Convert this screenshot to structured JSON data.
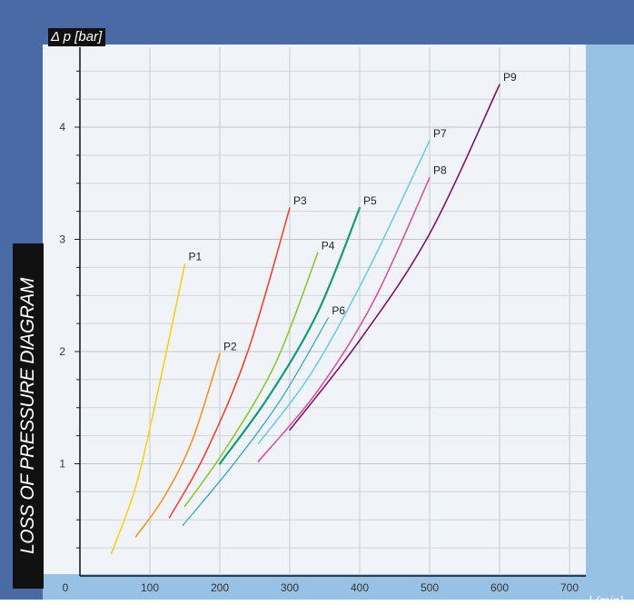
{
  "chart_data": {
    "type": "line",
    "title": "LOSS OF PRESSURE DIAGRAM",
    "xlabel": "l (min)",
    "ylabel": "Δ p [bar]",
    "xlim": [
      0,
      720
    ],
    "ylim": [
      0,
      4.7
    ],
    "x_ticks": [
      0,
      100,
      200,
      300,
      400,
      500,
      600,
      700
    ],
    "x_tick_labels": [
      "0",
      "100",
      "200",
      "300",
      "400",
      "500",
      "600",
      "700"
    ],
    "y_ticks": [
      1,
      2,
      3,
      4
    ],
    "y_tick_labels": [
      "1",
      "2",
      "3",
      "4"
    ],
    "grid": true,
    "legend": "none",
    "series": [
      {
        "name": "P1",
        "color": "#f5d21e",
        "x": [
          45,
          80,
          110,
          150
        ],
        "y": [
          0.2,
          0.8,
          1.6,
          2.78
        ]
      },
      {
        "name": "P2",
        "color": "#f0922e",
        "x": [
          80,
          120,
          160,
          200
        ],
        "y": [
          0.35,
          0.7,
          1.2,
          1.98
        ]
      },
      {
        "name": "P3",
        "color": "#e8463a",
        "x": [
          128,
          180,
          240,
          300
        ],
        "y": [
          0.52,
          1.1,
          2.0,
          3.28
        ]
      },
      {
        "name": "P4",
        "color": "#8cc63e",
        "x": [
          150,
          210,
          280,
          340
        ],
        "y": [
          0.62,
          1.15,
          1.9,
          2.88
        ]
      },
      {
        "name": "P5",
        "color": "#119a7a",
        "x": [
          200,
          270,
          340,
          400
        ],
        "y": [
          1.0,
          1.6,
          2.35,
          3.28
        ]
      },
      {
        "name": "P6",
        "color": "#1e9dba",
        "x": [
          147,
          220,
          290,
          355
        ],
        "y": [
          0.45,
          1.0,
          1.6,
          2.3
        ]
      },
      {
        "name": "P7",
        "color": "#6fcde0",
        "x": [
          255,
          330,
          410,
          500
        ],
        "y": [
          1.18,
          1.8,
          2.7,
          3.88
        ]
      },
      {
        "name": "P8",
        "color": "#d4559e",
        "x": [
          255,
          340,
          420,
          500
        ],
        "y": [
          1.02,
          1.65,
          2.45,
          3.55
        ]
      },
      {
        "name": "P9",
        "color": "#7a1466",
        "x": [
          300,
          400,
          500,
          600
        ],
        "y": [
          1.3,
          2.1,
          3.05,
          4.38
        ]
      }
    ]
  }
}
